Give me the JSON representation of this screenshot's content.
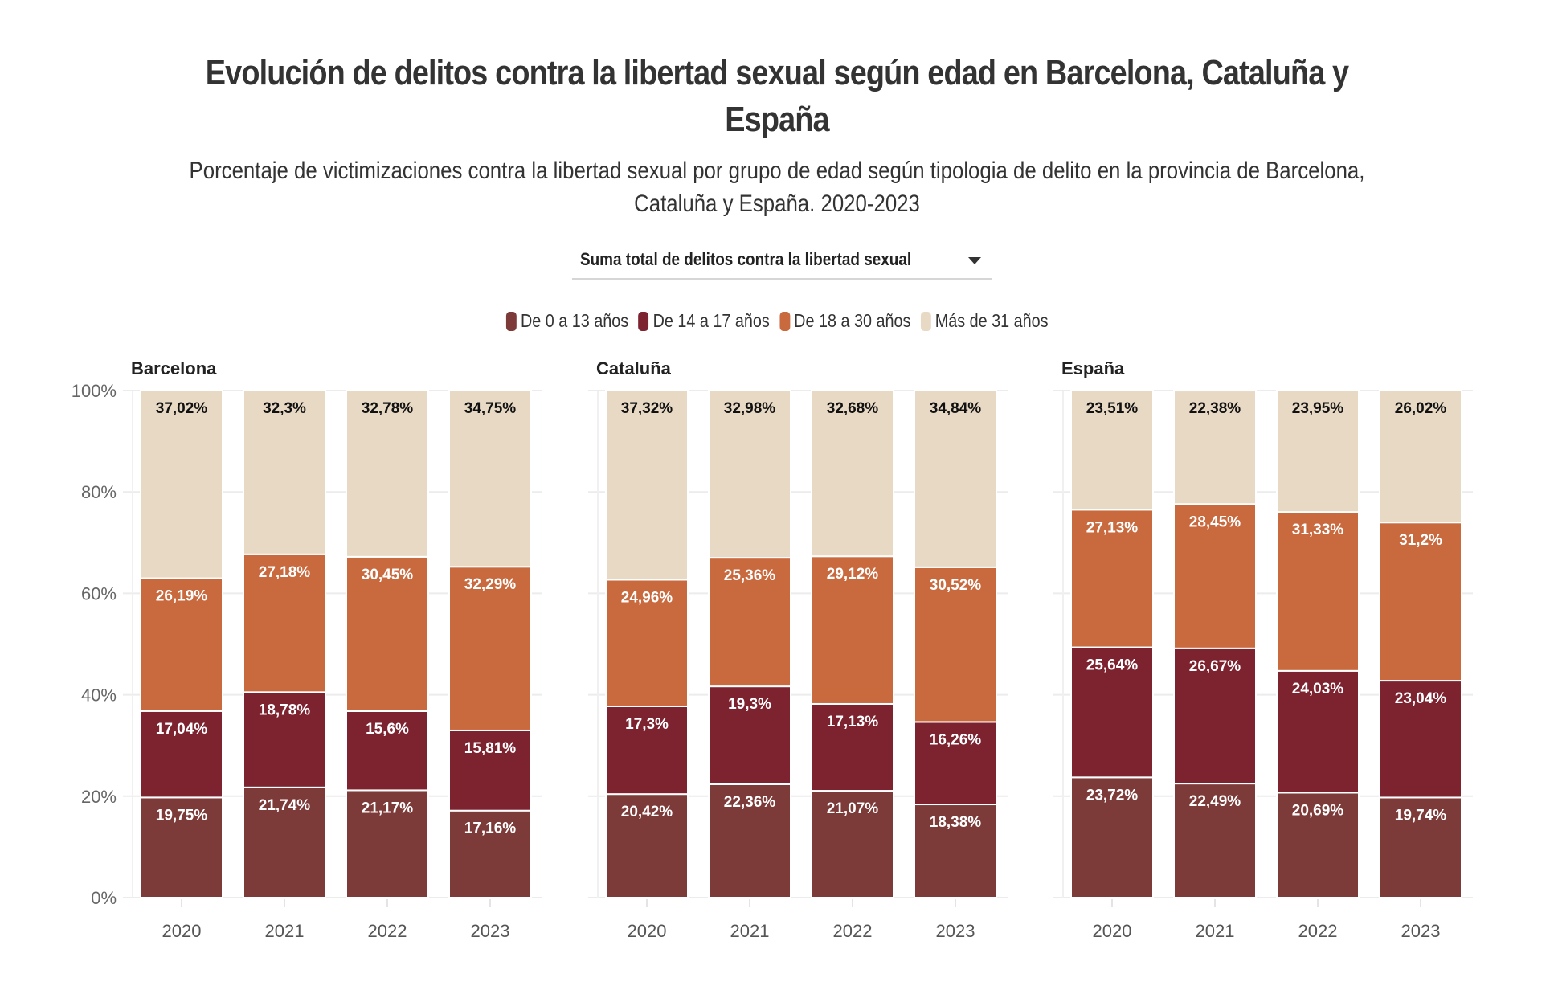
{
  "header": {
    "title_line1": "Evolución de delitos contra la libertad sexual según edad en Barcelona, Cataluña y",
    "title_line2": "España",
    "subtitle_line1": "Porcentaje de victimizaciones contra la libertad sexual por grupo de edad según tipologia de delito en la provincia de Barcelona,",
    "subtitle_line2": "Cataluña y España. 2020-2023"
  },
  "dropdown": {
    "selected": "Suma total de delitos contra la libertad sexual",
    "icon": "caret-down-icon"
  },
  "legend": [
    {
      "label": "De 0 a 13 años",
      "color": "#7c3b38"
    },
    {
      "label": "De 14 a 17 años",
      "color": "#7d2330"
    },
    {
      "label": "De 18 a 30 años",
      "color": "#c9693e"
    },
    {
      "label": "Más de 31 años",
      "color": "#e8d9c5"
    }
  ],
  "chart_data": {
    "type": "bar",
    "stacked": true,
    "normalized": true,
    "title": "Evolución de delitos contra la libertad sexual según edad en Barcelona, Cataluña y España",
    "ylabel": "",
    "xlabel": "",
    "ylim": [
      0,
      100
    ],
    "yticks": [
      "0%",
      "20%",
      "40%",
      "60%",
      "80%",
      "100%"
    ],
    "grid": true,
    "legend_position": "top-center",
    "categories": [
      "2020",
      "2021",
      "2022",
      "2023"
    ],
    "series_names": [
      "De 0 a 13 años",
      "De 14 a 17 años",
      "De 18 a 30 años",
      "Más de 31 años"
    ],
    "series_colors": [
      "#7c3b38",
      "#7d2330",
      "#c9693e",
      "#e8d9c5"
    ],
    "label_colors": [
      "#ffffff",
      "#ffffff",
      "#ffffff",
      "#111111"
    ],
    "panels": [
      {
        "name": "Barcelona",
        "series": [
          {
            "name": "De 0 a 13 años",
            "values": [
              19.75,
              21.74,
              21.17,
              17.16
            ],
            "labels": [
              "19,75%",
              "21,74%",
              "21,17%",
              "17,16%"
            ]
          },
          {
            "name": "De 14 a 17 años",
            "values": [
              17.04,
              18.78,
              15.6,
              15.81
            ],
            "labels": [
              "17,04%",
              "18,78%",
              "15,6%",
              "15,81%"
            ]
          },
          {
            "name": "De 18 a 30 años",
            "values": [
              26.19,
              27.18,
              30.45,
              32.29
            ],
            "labels": [
              "26,19%",
              "27,18%",
              "30,45%",
              "32,29%"
            ]
          },
          {
            "name": "Más de 31 años",
            "values": [
              37.02,
              32.3,
              32.78,
              34.75
            ],
            "labels": [
              "37,02%",
              "32,3%",
              "32,78%",
              "34,75%"
            ]
          }
        ]
      },
      {
        "name": "Cataluña",
        "series": [
          {
            "name": "De 0 a 13 años",
            "values": [
              20.42,
              22.36,
              21.07,
              18.38
            ],
            "labels": [
              "20,42%",
              "22,36%",
              "21,07%",
              "18,38%"
            ]
          },
          {
            "name": "De 14 a 17 años",
            "values": [
              17.3,
              19.3,
              17.13,
              16.26
            ],
            "labels": [
              "17,3%",
              "19,3%",
              "17,13%",
              "16,26%"
            ]
          },
          {
            "name": "De 18 a 30 años",
            "values": [
              24.96,
              25.36,
              29.12,
              30.52
            ],
            "labels": [
              "24,96%",
              "25,36%",
              "29,12%",
              "30,52%"
            ]
          },
          {
            "name": "Más de 31 años",
            "values": [
              37.32,
              32.98,
              32.68,
              34.84
            ],
            "labels": [
              "37,32%",
              "32,98%",
              "32,68%",
              "34,84%"
            ]
          }
        ]
      },
      {
        "name": "España",
        "series": [
          {
            "name": "De 0 a 13 años",
            "values": [
              23.72,
              22.49,
              20.69,
              19.74
            ],
            "labels": [
              "23,72%",
              "22,49%",
              "20,69%",
              "19,74%"
            ]
          },
          {
            "name": "De 14 a 17 años",
            "values": [
              25.64,
              26.67,
              24.03,
              23.04
            ],
            "labels": [
              "25,64%",
              "26,67%",
              "24,03%",
              "23,04%"
            ]
          },
          {
            "name": "De 18 a 30 años",
            "values": [
              27.13,
              28.45,
              31.33,
              31.2
            ],
            "labels": [
              "27,13%",
              "28,45%",
              "31,33%",
              "31,2%"
            ]
          },
          {
            "name": "Más de 31 años",
            "values": [
              23.51,
              22.38,
              23.95,
              26.02
            ],
            "labels": [
              "23,51%",
              "22,38%",
              "23,95%",
              "26,02%"
            ]
          }
        ]
      }
    ]
  }
}
